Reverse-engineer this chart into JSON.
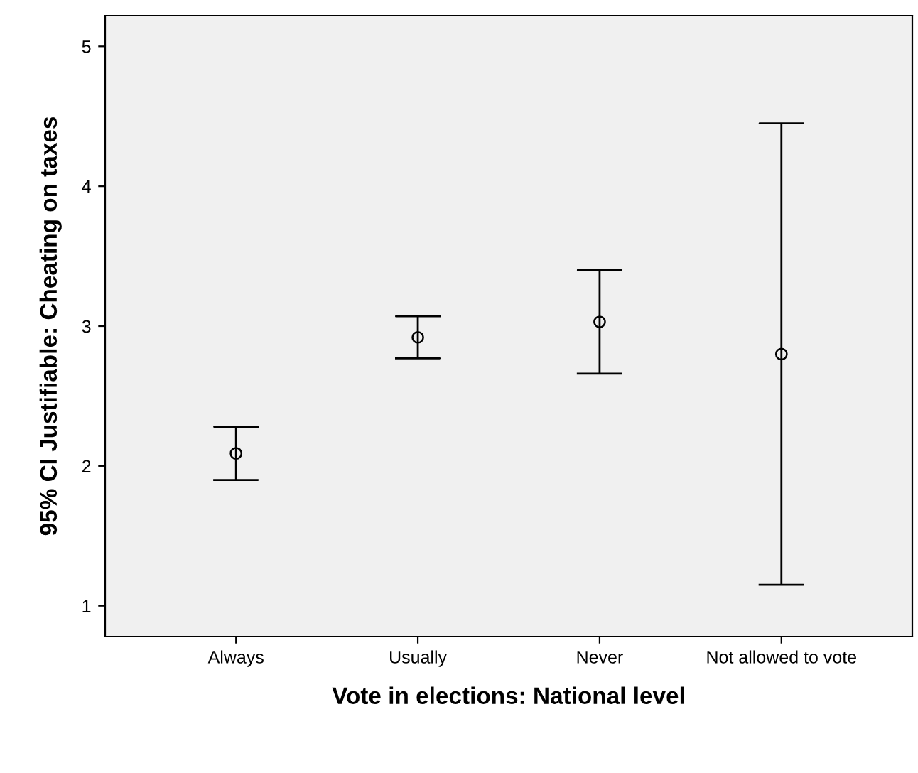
{
  "chart_data": {
    "type": "scatter",
    "xlabel": "Vote in elections: National level",
    "ylabel": "95% CI Justifiable: Cheating on taxes",
    "categories": [
      "Always",
      "Usually",
      "Never",
      "Not allowed to vote"
    ],
    "values": [
      2.09,
      2.92,
      3.03,
      2.8
    ],
    "errors": [
      [
        1.9,
        2.28
      ],
      [
        2.77,
        3.07
      ],
      [
        2.66,
        3.4
      ],
      [
        1.15,
        4.45
      ]
    ],
    "color": "#000000",
    "marker": "circle",
    "ylim": [
      0.78,
      5.22
    ],
    "yticks": [
      1,
      2,
      3,
      4,
      5
    ],
    "grid": false,
    "legend": false
  }
}
